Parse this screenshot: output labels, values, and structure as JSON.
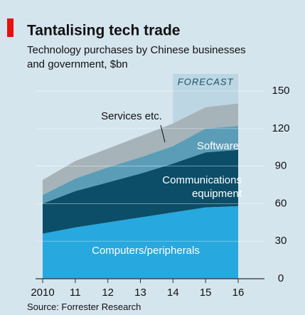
{
  "chart_data": {
    "type": "stacked_area",
    "title": "Tantalising tech trade",
    "subtitle": "Technology purchases by Chinese businesses and government, $bn",
    "source": "Source: Forrester Research",
    "forecast": {
      "label": "FORECAST",
      "from": "14"
    },
    "categories": [
      "2010",
      "11",
      "12",
      "13",
      "14",
      "15",
      "16"
    ],
    "series": [
      {
        "name": "Computers/peripherals",
        "color": "#27a8de",
        "values": [
          36,
          41,
          45,
          49,
          53,
          57,
          58
        ]
      },
      {
        "name": "Communications equipment",
        "color": "#0c4d68",
        "values": [
          24,
          29,
          32,
          35,
          39,
          44,
          45
        ]
      },
      {
        "name": "Software",
        "color": "#5b9db7",
        "values": [
          7,
          10,
          12,
          13,
          14,
          19,
          19
        ]
      },
      {
        "name": "Services etc.",
        "color": "#a6b3b9",
        "values": [
          12,
          14,
          15,
          17,
          18,
          17,
          18
        ]
      }
    ],
    "ylim": [
      0,
      150
    ],
    "yticks": [
      0,
      30,
      60,
      90,
      120,
      150
    ],
    "grid": true
  }
}
